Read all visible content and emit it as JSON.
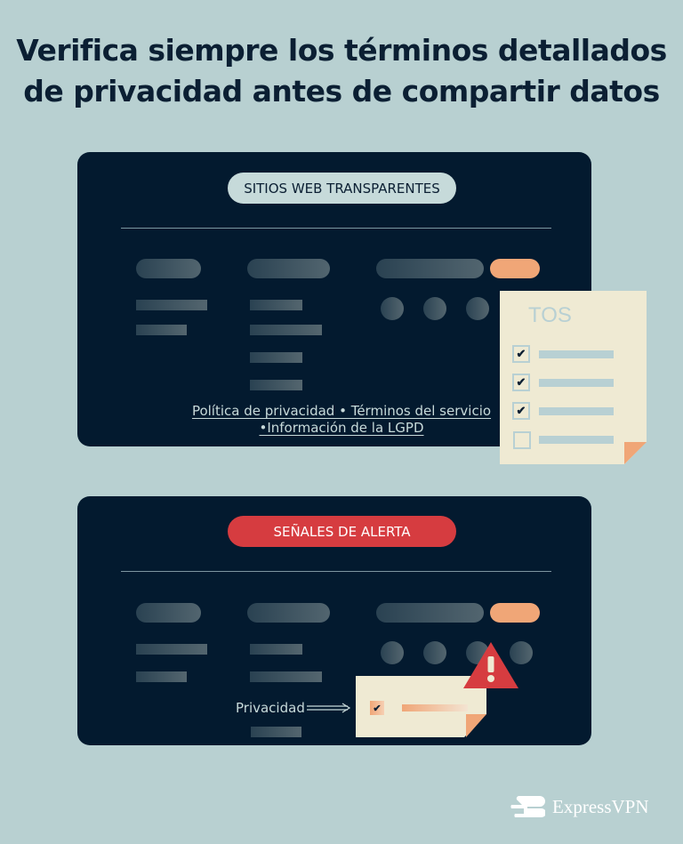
{
  "title": [
    "Verifica siempre los términos detallados",
    "de privacidad antes de compartir datos"
  ],
  "card1": {
    "badge": "SITIOS WEB TRANSPARENTES",
    "link1": "Política de privacidad • Términos del servicio",
    "link2": "•Información de la LGPD",
    "doc_title": "TOS",
    "checks": [
      true,
      true,
      true,
      false
    ]
  },
  "card2": {
    "badge": "SEÑALES DE ALERTA",
    "label": "Privacidad",
    "warning": "!"
  },
  "logo": {
    "text": "ExpressVPN"
  },
  "colors": {
    "background": "#b8d0d1",
    "card": "#031a2f",
    "accent": "#f0a677",
    "alert": "#d63c40",
    "paper": "#efead3"
  }
}
